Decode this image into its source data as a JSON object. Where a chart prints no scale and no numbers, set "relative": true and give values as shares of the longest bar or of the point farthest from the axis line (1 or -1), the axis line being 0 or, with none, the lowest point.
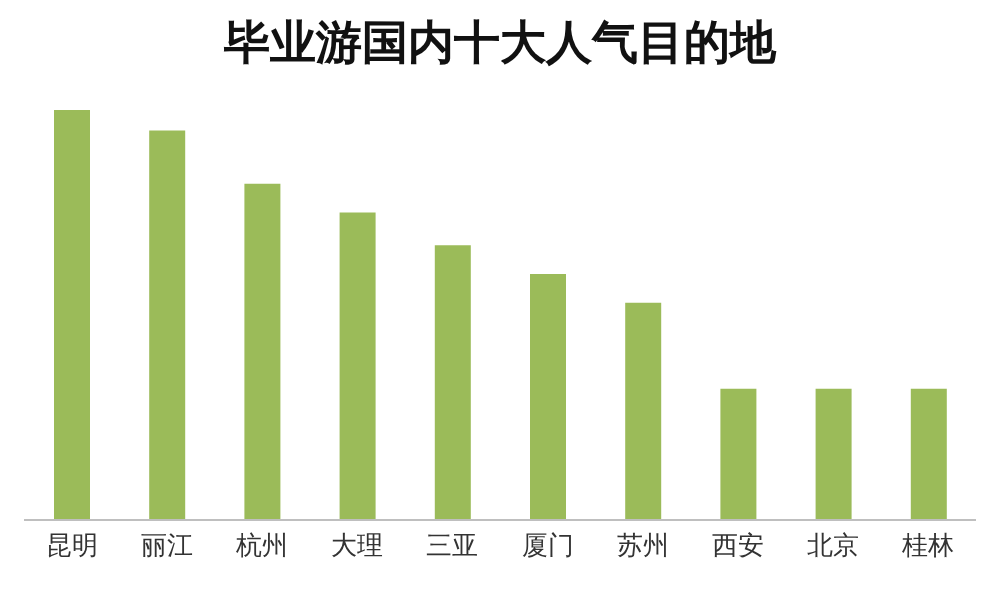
{
  "chart_data": {
    "type": "bar",
    "title": "毕业游国内十大人气目的地",
    "relative": true,
    "categories": [
      "昆明",
      "丽江",
      "杭州",
      "大理",
      "三亚",
      "厦门",
      "苏州",
      "西安",
      "北京",
      "桂林"
    ],
    "series": [
      {
        "color": "#9bbb59",
        "values": [
          1,
          0.95,
          0.82,
          0.75,
          0.67,
          0.6,
          0.53,
          0.32,
          0.32,
          0.32
        ]
      }
    ],
    "grid": false,
    "legend": false
  }
}
